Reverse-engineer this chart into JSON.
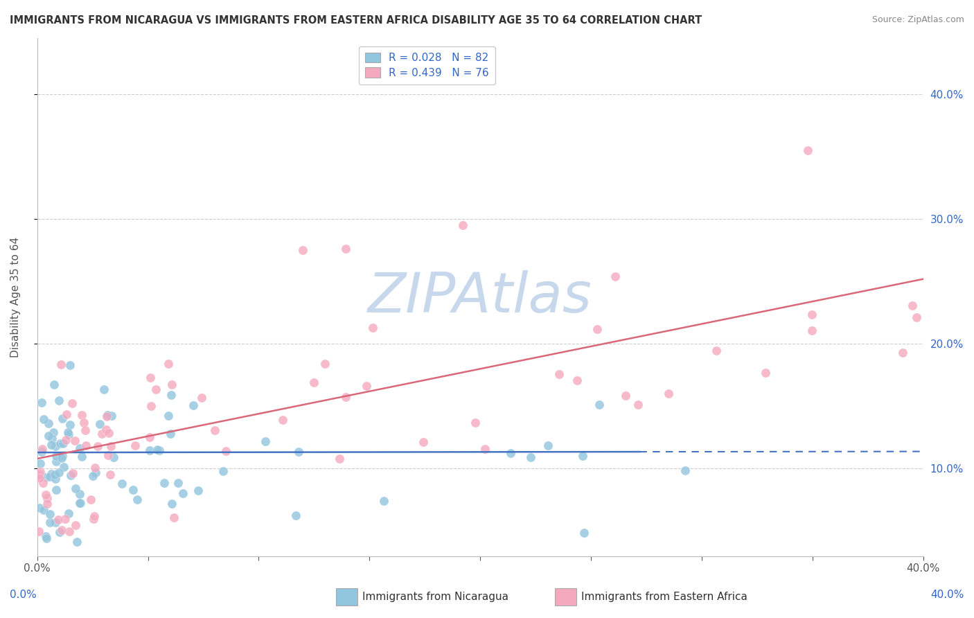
{
  "title": "IMMIGRANTS FROM NICARAGUA VS IMMIGRANTS FROM EASTERN AFRICA DISABILITY AGE 35 TO 64 CORRELATION CHART",
  "source": "Source: ZipAtlas.com",
  "ylabel": "Disability Age 35 to 64",
  "right_ytick_labels": [
    "10.0%",
    "20.0%",
    "30.0%",
    "40.0%"
  ],
  "right_ytick_vals": [
    0.1,
    0.2,
    0.3,
    0.4
  ],
  "xmin": 0.0,
  "xmax": 0.4,
  "ymin": 0.03,
  "ymax": 0.445,
  "color_nicaragua": "#92c5de",
  "color_eastern_africa": "#f4a9bf",
  "line_color_nicaragua": "#4472c4",
  "line_color_eastern": "#d9687a",
  "legend_color_text": "#3366cc",
  "watermark_text": "ZIPAtlas",
  "watermark_color": "#c8d8ec",
  "grid_color": "#cccccc",
  "spine_color": "#bbbbbb",
  "bottom_label_nicaragua": "Immigrants from Nicaragua",
  "bottom_label_eastern": "Immigrants from Eastern Africa"
}
